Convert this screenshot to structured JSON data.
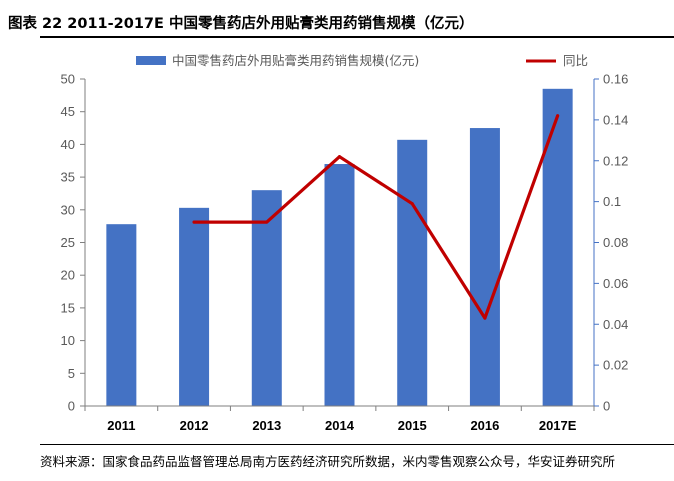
{
  "header": {
    "title": "图表 22 2011-2017E 中国零售药店外用贴膏类用药销售规模（亿元）"
  },
  "footer": {
    "source": "资料来源：国家食品药品监督管理总局南方医药经济研究所数据，米内零售观察公众号，华安证券研究所"
  },
  "colors": {
    "bar": "#4472C4",
    "line": "#C00000",
    "axis_right": "#4472C4"
  },
  "chart_data": {
    "type": "bar",
    "title": "",
    "categories": [
      "2011",
      "2012",
      "2013",
      "2014",
      "2015",
      "2016",
      "2017E"
    ],
    "series": [
      {
        "name": "中国零售药店外用贴膏类用药销售规模(亿元)",
        "type": "bar",
        "axis": "left",
        "values": [
          27.8,
          30.3,
          33.0,
          37.0,
          40.7,
          42.5,
          48.5
        ]
      },
      {
        "name": "同比",
        "type": "line",
        "axis": "right",
        "values": [
          null,
          0.09,
          0.09,
          0.122,
          0.099,
          0.043,
          0.142
        ]
      }
    ],
    "y_left": {
      "min": 0,
      "max": 50,
      "ticks": [
        "0",
        "5",
        "10",
        "15",
        "20",
        "25",
        "30",
        "35",
        "40",
        "45",
        "50"
      ]
    },
    "y_right": {
      "min": 0,
      "max": 0.16,
      "ticks": [
        "0",
        "0.02",
        "0.04",
        "0.06",
        "0.08",
        "0.1",
        "0.12",
        "0.14",
        "0.16"
      ]
    },
    "legend": {
      "position": "top"
    }
  }
}
